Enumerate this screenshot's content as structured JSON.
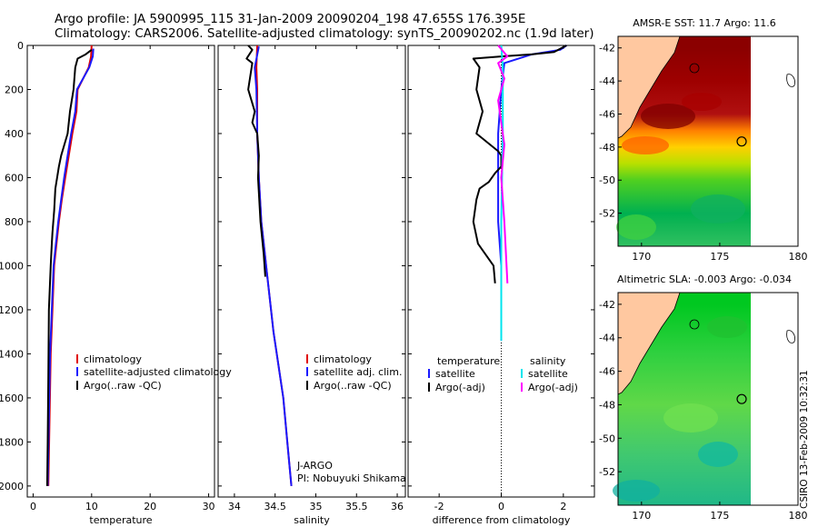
{
  "header": {
    "line1": "Argo profile: JA 5900995_115 31-Jan-2009 20090204_198 47.655S 176.395E",
    "line2": "Climatology: CARS2006. Satellite-adjusted climatology: synTS_20090202.nc (1.9d later)"
  },
  "colors": {
    "climatology": "#e00000",
    "satellite": "#1a1aff",
    "argo": "#000000",
    "satellite_salinity": "#00e5ee",
    "argo_salinity_diff": "#ff00ff",
    "land": "#ffc8a0"
  },
  "footer": {
    "stamp": "CSIRO 13-Feb-2009 10:32:31"
  },
  "chart_data": [
    {
      "type": "line",
      "id": "temperature",
      "xlabel": "temperature",
      "ylabel": "",
      "xlim": [
        -1,
        31
      ],
      "ylim": [
        2050,
        0
      ],
      "xticks": [
        "0",
        "10",
        "20",
        "30"
      ],
      "xtick_values": [
        0,
        10,
        20,
        30
      ],
      "yticks": [
        "0",
        "200",
        "400",
        "600",
        "800",
        "1000",
        "1200",
        "1400",
        "1600",
        "1800",
        "2000"
      ],
      "ytick_values": [
        0,
        200,
        400,
        600,
        800,
        1000,
        1200,
        1400,
        1600,
        1800,
        2000
      ],
      "legend": [
        "climatology",
        "satellite-adjusted climatology",
        "Argo(..raw -QC)"
      ],
      "series": [
        {
          "name": "climatology",
          "color": "#e00000",
          "x": [
            10.0,
            9.9,
            9.5,
            7.6,
            7.4,
            6.7,
            6.1,
            5.5,
            4.9,
            4.4,
            4.0,
            3.6,
            3.3,
            3.0,
            2.8,
            2.6
          ],
          "y": [
            0,
            50,
            100,
            200,
            300,
            400,
            500,
            600,
            700,
            800,
            900,
            1000,
            1200,
            1400,
            1700,
            2000
          ]
        },
        {
          "name": "satellite-adjusted climatology",
          "color": "#1a1aff",
          "x": [
            10.3,
            10.2,
            9.6,
            7.5,
            7.2,
            6.5,
            5.9,
            5.3,
            4.8,
            4.3,
            3.9,
            3.5,
            3.2,
            2.9,
            2.7,
            2.5
          ],
          "y": [
            15,
            50,
            100,
            200,
            300,
            400,
            500,
            600,
            700,
            800,
            900,
            1000,
            1200,
            1400,
            1700,
            2000
          ]
        },
        {
          "name": "Argo(..raw -QC)",
          "color": "#000000",
          "x": [
            10.0,
            9.0,
            7.6,
            7.2,
            6.9,
            6.3,
            5.9,
            4.8,
            4.4,
            3.8,
            3.6,
            3.3,
            3.2,
            3.0,
            2.7,
            2.6,
            2.5,
            2.4
          ],
          "y": [
            20,
            40,
            60,
            100,
            200,
            300,
            400,
            500,
            550,
            650,
            750,
            850,
            900,
            1000,
            1200,
            1500,
            1800,
            2000
          ]
        }
      ]
    },
    {
      "type": "line",
      "id": "salinity",
      "xlabel": "salinity",
      "ylabel": "",
      "xlim": [
        33.8,
        36.1
      ],
      "ylim": [
        2050,
        0
      ],
      "xticks": [
        "34",
        "34.5",
        "35",
        "35.5",
        "36"
      ],
      "xtick_values": [
        34,
        34.5,
        35,
        35.5,
        36
      ],
      "legend": [
        "climatology",
        "satellite adj. clim.",
        "Argo(..raw -QC)"
      ],
      "annotations": [
        "J-ARGO",
        "PI: Nobuyuki Shikama"
      ],
      "series": [
        {
          "name": "climatology",
          "color": "#e00000",
          "x": [
            34.28,
            34.27,
            34.28,
            34.28,
            34.3,
            34.33,
            34.36,
            34.39,
            34.42,
            34.45,
            34.48,
            34.54,
            34.6,
            34.65,
            34.7
          ],
          "y": [
            0,
            100,
            200,
            400,
            600,
            800,
            900,
            1000,
            1100,
            1200,
            1300,
            1450,
            1600,
            1800,
            2000
          ]
        },
        {
          "name": "satellite adj. clim.",
          "color": "#1a1aff",
          "x": [
            34.3,
            34.25,
            34.27,
            34.28,
            34.3,
            34.33,
            34.36,
            34.39,
            34.42,
            34.45,
            34.48,
            34.54,
            34.6,
            34.65,
            34.7
          ],
          "y": [
            5,
            100,
            200,
            400,
            600,
            800,
            900,
            1000,
            1100,
            1200,
            1300,
            1450,
            1600,
            1800,
            2000
          ]
        },
        {
          "name": "Argo(..raw -QC)",
          "color": "#000000",
          "x": [
            34.17,
            34.22,
            34.15,
            34.22,
            34.17,
            34.25,
            34.22,
            34.28,
            34.3,
            34.29,
            34.32,
            34.36,
            34.38
          ],
          "y": [
            0,
            20,
            60,
            80,
            200,
            300,
            350,
            400,
            500,
            600,
            800,
            950,
            1050
          ]
        }
      ]
    },
    {
      "type": "line",
      "id": "difference",
      "xlabel": "difference from climatology",
      "ylabel": "",
      "xlim": [
        -3.0,
        3.0
      ],
      "ylim": [
        2050,
        0
      ],
      "xticks": [
        "-2",
        "0",
        "2"
      ],
      "xtick_values": [
        -2,
        0,
        2
      ],
      "legend_titles": [
        "temperature",
        "salinity"
      ],
      "legend": [
        "satellite",
        "Argo(-adj)",
        "satellite",
        "Argo(-adj)"
      ],
      "series": [
        {
          "name": "temperature satellite",
          "color": "#1a1aff",
          "x": [
            2.1,
            1.9,
            1.0,
            0.1,
            0.0,
            -0.1,
            -0.1,
            0.0,
            0.0,
            0.0,
            0.0
          ],
          "y": [
            0,
            20,
            40,
            80,
            200,
            400,
            800,
            1000,
            1200,
            1300,
            1340
          ]
        },
        {
          "name": "temperature Argo(-adj)",
          "color": "#000000",
          "x": [
            2.1,
            1.7,
            1.0,
            0.0,
            -0.9,
            -0.7,
            -0.8,
            -0.6,
            -0.8,
            -0.1,
            0.0,
            0.0,
            -0.2,
            -0.4,
            -0.7,
            -0.8,
            -0.9,
            -0.75,
            -0.25,
            -0.2
          ],
          "y": [
            0,
            30,
            40,
            50,
            60,
            100,
            200,
            300,
            400,
            480,
            500,
            550,
            580,
            620,
            650,
            700,
            800,
            900,
            1000,
            1080
          ]
        },
        {
          "name": "salinity satellite",
          "color": "#00e5ee",
          "x": [
            0.0,
            0.05,
            0.05,
            0.0,
            0.0,
            0.0,
            0.0
          ],
          "y": [
            0,
            100,
            400,
            800,
            1100,
            1300,
            1340
          ]
        },
        {
          "name": "salinity Argo(-adj)",
          "color": "#ff00ff",
          "x": [
            -0.1,
            0.2,
            -0.1,
            0.1,
            -0.1,
            0.0,
            0.1,
            0.0,
            0.1,
            0.2
          ],
          "y": [
            0,
            50,
            80,
            150,
            250,
            350,
            450,
            600,
            800,
            1080
          ]
        }
      ]
    },
    {
      "type": "heatmap",
      "id": "sst-map",
      "title": "AMSR-E SST: 11.7 Argo: 11.6",
      "xlim": [
        168.5,
        180
      ],
      "ylim": [
        -54,
        -41.3
      ],
      "xticks": [
        "170",
        "175",
        "180"
      ],
      "yticks": [
        "-42",
        "-44",
        "-46",
        "-48",
        "-50",
        "-52"
      ],
      "profile_lon": 176.4,
      "profile_lat": -47.66,
      "color_rows": [
        {
          "lat": -42,
          "color": "#8b0000"
        },
        {
          "lat": -44,
          "color": "#9e0000"
        },
        {
          "lat": -46,
          "color": "#b01010"
        },
        {
          "lat": -47,
          "color": "#ff8000"
        },
        {
          "lat": -48,
          "color": "#ffd000"
        },
        {
          "lat": -49,
          "color": "#b8e000"
        },
        {
          "lat": -50,
          "color": "#50d020"
        },
        {
          "lat": -52,
          "color": "#00b050"
        },
        {
          "lat": -54,
          "color": "#30c060"
        }
      ]
    },
    {
      "type": "heatmap",
      "id": "sla-map",
      "title": "Altimetric SLA: -0.003 Argo: -0.034",
      "xlim": [
        168.5,
        180
      ],
      "ylim": [
        -54,
        -41.3
      ],
      "xticks": [
        "170",
        "175",
        "180"
      ],
      "yticks": [
        "-42",
        "-44",
        "-46",
        "-48",
        "-50",
        "-52"
      ],
      "profile_lon": 176.4,
      "profile_lat": -47.66,
      "color_rows": [
        {
          "lat": -42,
          "color": "#00c820"
        },
        {
          "lat": -45,
          "color": "#30d040"
        },
        {
          "lat": -48,
          "color": "#60d848"
        },
        {
          "lat": -51,
          "color": "#40c870"
        },
        {
          "lat": -54,
          "color": "#20b888"
        }
      ]
    }
  ]
}
